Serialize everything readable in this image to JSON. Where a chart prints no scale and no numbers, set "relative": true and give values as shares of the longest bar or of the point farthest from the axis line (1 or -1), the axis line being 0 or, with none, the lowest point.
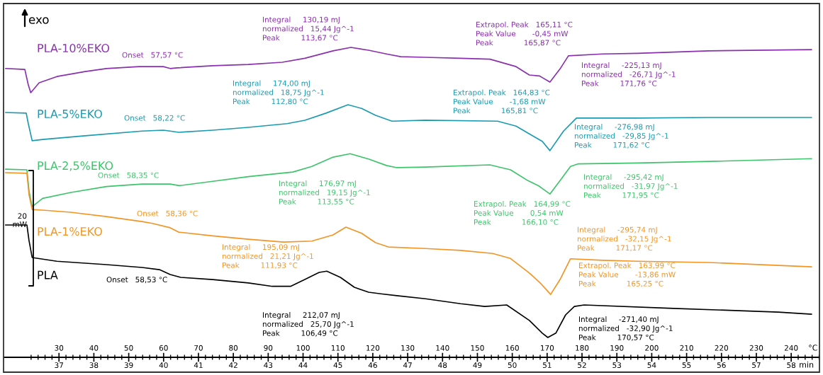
{
  "chart_data": {
    "type": "line",
    "relative": true,
    "xlabel": "°C",
    "x2label": "min",
    "xlim": [
      14.3,
      248.1
    ],
    "xticks": [
      30,
      40,
      50,
      60,
      70,
      80,
      90,
      100,
      110,
      120,
      130,
      140,
      150,
      160,
      170,
      180,
      190,
      200,
      210,
      220,
      230,
      240
    ],
    "x2lim": [
      35.43,
      58.81
    ],
    "x2ticks": [
      37,
      38,
      39,
      40,
      41,
      42,
      43,
      44,
      45,
      46,
      47,
      48,
      49,
      50,
      51,
      52,
      53,
      54,
      55,
      56,
      57,
      58
    ],
    "grid": false,
    "legend": false,
    "marker": "none",
    "line_style": "solid",
    "series": [
      {
        "name": "PLA-10%EKO",
        "color": "#8a2fae",
        "x": [
          14.7,
          20.2,
          21.2,
          21.9,
          24.3,
          29.4,
          37.5,
          43.6,
          53.0,
          59.9,
          61.9,
          63.9,
          74.1,
          84.3,
          94.0,
          100.5,
          108.6,
          113.7,
          118.8,
          123.9,
          128.0,
          135.1,
          145.2,
          153.6,
          161.1,
          164.9,
          167.8,
          170.8,
          173.9,
          176.1,
          185.9,
          196.0,
          216.4,
          245.8
        ],
        "values": [
          0.932,
          0.929,
          0.879,
          0.854,
          0.886,
          0.906,
          0.922,
          0.932,
          0.938,
          0.938,
          0.932,
          0.934,
          0.941,
          0.945,
          0.952,
          0.965,
          0.989,
          1.0,
          0.991,
          0.979,
          0.97,
          0.968,
          0.965,
          0.962,
          0.938,
          0.911,
          0.908,
          0.888,
          0.934,
          0.973,
          0.979,
          0.981,
          0.989,
          0.993
        ]
      },
      {
        "name": "PLA-5%EKO",
        "color": "#1a9bb0",
        "x": [
          14.7,
          20.6,
          21.2,
          22.3,
          25.3,
          37.5,
          53.8,
          59.9,
          61.9,
          64.3,
          74.1,
          84.3,
          95.4,
          100.5,
          106.6,
          112.9,
          116.8,
          120.8,
          125.5,
          135.1,
          155.8,
          161.1,
          164.9,
          168.6,
          170.8,
          174.7,
          178.4,
          196.0,
          216.4,
          245.8
        ],
        "values": [
          0.79,
          0.788,
          0.754,
          0.699,
          0.703,
          0.715,
          0.73,
          0.733,
          0.73,
          0.726,
          0.733,
          0.742,
          0.754,
          0.765,
          0.788,
          0.815,
          0.803,
          0.781,
          0.762,
          0.765,
          0.762,
          0.746,
          0.721,
          0.697,
          0.667,
          0.73,
          0.772,
          0.772,
          0.774,
          0.774
        ]
      },
      {
        "name": "PLA-2,5%EKO",
        "color": "#3dc46a",
        "x": [
          14.7,
          20.8,
          21.4,
          22.3,
          25.3,
          33.4,
          43.6,
          53.8,
          61.9,
          64.5,
          74.1,
          84.3,
          97.1,
          102.5,
          108.6,
          113.5,
          118.8,
          123.9,
          126.9,
          135.1,
          153.6,
          159.5,
          164.5,
          167.6,
          170.8,
          173.7,
          176.7,
          178.8,
          196.0,
          216.4,
          245.8
        ],
        "values": [
          0.607,
          0.605,
          0.537,
          0.486,
          0.513,
          0.532,
          0.551,
          0.559,
          0.559,
          0.554,
          0.568,
          0.583,
          0.598,
          0.616,
          0.646,
          0.657,
          0.64,
          0.619,
          0.612,
          0.614,
          0.621,
          0.605,
          0.57,
          0.553,
          0.527,
          0.57,
          0.616,
          0.624,
          0.627,
          0.632,
          0.641
        ]
      },
      {
        "name": "PLA-1%EKO",
        "color": "#f39424",
        "x": [
          14.7,
          20.8,
          21.4,
          22.3,
          25.3,
          33.4,
          43.6,
          53.8,
          56.8,
          61.9,
          64.3,
          74.1,
          84.3,
          94.4,
          102.5,
          108.6,
          112.3,
          116.8,
          120.8,
          124.5,
          135.1,
          145.2,
          154.4,
          159.5,
          164.9,
          168.0,
          171.0,
          173.7,
          176.7,
          185.9,
          196.0,
          216.4,
          245.8
        ],
        "values": [
          0.596,
          0.594,
          0.525,
          0.477,
          0.475,
          0.468,
          0.454,
          0.438,
          0.432,
          0.418,
          0.404,
          0.392,
          0.381,
          0.372,
          0.375,
          0.395,
          0.42,
          0.4,
          0.37,
          0.356,
          0.351,
          0.345,
          0.335,
          0.319,
          0.272,
          0.24,
          0.203,
          0.251,
          0.318,
          0.313,
          0.31,
          0.306,
          0.292
        ]
      },
      {
        "name": "PLA",
        "color": "#000000",
        "x": [
          14.7,
          20.8,
          21.4,
          22.3,
          29.4,
          43.6,
          53.8,
          58.8,
          61.9,
          64.9,
          74.1,
          84.3,
          91.2,
          96.4,
          100.5,
          104.6,
          106.8,
          110.7,
          114.7,
          118.8,
          122.3,
          126.9,
          135.1,
          145.2,
          152.1,
          158.4,
          164.9,
          168.6,
          170.2,
          172.5,
          175.3,
          177.8,
          180.6,
          206.2,
          236.3,
          245.8
        ],
        "values": [
          0.427,
          0.427,
          0.377,
          0.322,
          0.31,
          0.299,
          0.29,
          0.283,
          0.267,
          0.258,
          0.251,
          0.24,
          0.229,
          0.229,
          0.251,
          0.274,
          0.278,
          0.258,
          0.226,
          0.21,
          0.205,
          0.199,
          0.189,
          0.173,
          0.164,
          0.169,
          0.119,
          0.078,
          0.064,
          0.078,
          0.137,
          0.164,
          0.169,
          0.158,
          0.146,
          0.139
        ]
      }
    ],
    "annotations": [
      "exo",
      "20\nmW",
      "Integral\t130,19 mJ\nnormalized\t15,44 Jg^-1\nPeak\t113,67 °C",
      "Extrapol. Peak\t165,11 °C\nPeak Value\t-0,45 mW\nPeak\t165,87 °C",
      "Integral\t-225,13 mJ\nnormalized\t-26,71 Jg^-1\nPeak\t171,76 °C",
      "Onset\t57,57 °C",
      "Integral\t174,00 mJ\nnormalized\t18,75 Jg^-1\nPeak\t112,80 °C",
      "Onset\t58,22 °C",
      "Extrapol. Peak\t164,83 °C\nPeak Value\t-1,68 mW\nPeak\t165,81 °C",
      "Integral\t-276,98 mJ\nnormalized\t-29,85 Jg^-1\nPeak\t171,62 °C",
      "Onset\t58,35 °C",
      "Integral\t176,97 mJ\nnormalized\t19,15 Jg^-1\nPeak\t113,55 °C",
      "Integral\t-295,42 mJ\nnormalized\t-31,97 Jg^-1\nPeak\t171,95 °C",
      "Extrapol. Peak\t164,99 °C\nPeak Value\t0,54 mW\nPeak\t166,10 °C",
      "Onset\t58,36 °C",
      "Integral\t195,09 mJ\nnormalized\t21,21 Jg^-1\nPeak\t111,93 °C",
      "Integral\t-295,74 mJ\nnormalized\t-32,15 Jg^-1\nPeak\t171,17 °C",
      "Extrapol. Peak\t163,99 °C\nPeak Value\t-13,86 mW\nPeak\t165,25 °C",
      "Onset\t58,53 °C",
      "Integral\t212,07 mJ\nnormalized\t25,70 Jg^-1\nPeak\t106,49 °C",
      "Integral\t-271,40 mJ\nnormalized\t-32,90 Jg^-1\nPeak\t170,57 °C"
    ]
  }
}
